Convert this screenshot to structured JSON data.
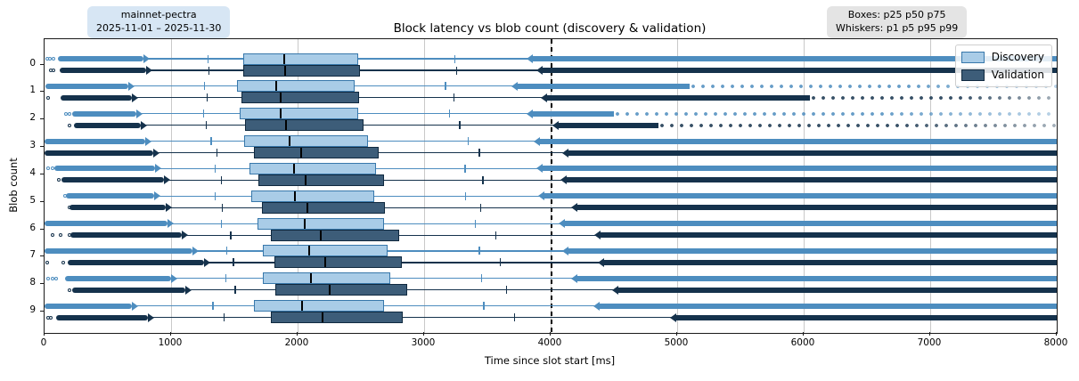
{
  "figure": {
    "title": "Block latency vs blob count (discovery & validation)",
    "left_badge": {
      "line1": "mainnet-pectra",
      "line2": "2025-11-01 – 2025-11-30"
    },
    "right_badge": {
      "line1": "Boxes: p25 p50 p75",
      "line2": "Whiskers: p1 p5 p95 p99"
    }
  },
  "chart_data": {
    "type": "boxplot-horizontal",
    "title": "Block latency vs blob count (discovery & validation)",
    "xlabel": "Time since slot start [ms]",
    "ylabel": "Blob count",
    "xlim": [
      0,
      8000
    ],
    "x_ticks": [
      0,
      1000,
      2000,
      3000,
      4000,
      5000,
      6000,
      7000,
      8000
    ],
    "grid": "vertical",
    "refline_x": 4000,
    "legend": {
      "position": "upper right",
      "items": [
        {
          "label": "Discovery"
        },
        {
          "label": "Validation"
        }
      ]
    },
    "box_stats_definition": {
      "box": "p25 p50 p75",
      "whiskers": "p1 p5 p95 p99"
    },
    "colors": {
      "discovery_fill": "#a9cce7",
      "discovery_edge": "#3878ab",
      "discovery_band": "#4d8dbf",
      "validation_fill": "#3d5d79",
      "validation_edge": "#10293f",
      "validation_band": "#15324c",
      "median": "#000000",
      "grid": "#c9c9c9",
      "refline": "#000000"
    },
    "groups": [
      {
        "blob_count": 0,
        "discovery": {
          "outlier_dots_ms": [
            18,
            45,
            68
          ],
          "flier_band_low_ms": [
            108,
            780
          ],
          "p5": 1286,
          "p25": 1570,
          "p50": 1887,
          "p75": 2478,
          "p95": 3239,
          "flier_band_high_start_ms": 3860,
          "flier_fade_from_ms": null
        },
        "validation": {
          "outlier_dots_ms": [
            50,
            72
          ],
          "flier_band_low_ms": [
            120,
            800
          ],
          "p5": 1295,
          "p25": 1570,
          "p50": 1894,
          "p75": 2492,
          "p95": 3253,
          "flier_band_high_start_ms": 3940,
          "flier_fade_from_ms": null
        }
      },
      {
        "blob_count": 1,
        "discovery": {
          "outlier_dots_ms": [],
          "flier_band_low_ms": [
            5,
            660
          ],
          "p5": 1260,
          "p25": 1521,
          "p50": 1824,
          "p75": 2450,
          "p95": 3162,
          "flier_band_high_start_ms": 3740,
          "flier_fade_from_ms": 5100
        },
        "validation": {
          "outlier_dots_ms": [
            30
          ],
          "flier_band_low_ms": [
            130,
            690
          ],
          "p5": 1280,
          "p25": 1556,
          "p50": 1859,
          "p75": 2485,
          "p95": 3232,
          "flier_band_high_start_ms": 3970,
          "flier_fade_from_ms": 6050
        }
      },
      {
        "blob_count": 2,
        "discovery": {
          "outlier_dots_ms": [
            168,
            198
          ],
          "flier_band_low_ms": [
            215,
            725
          ],
          "p5": 1253,
          "p25": 1542,
          "p50": 1859,
          "p75": 2478,
          "p95": 3197,
          "flier_band_high_start_ms": 3860,
          "flier_fade_from_ms": 4500
        },
        "validation": {
          "outlier_dots_ms": [
            195
          ],
          "flier_band_low_ms": [
            230,
            760
          ],
          "p5": 1274,
          "p25": 1584,
          "p50": 1901,
          "p75": 2521,
          "p95": 3275,
          "flier_band_high_start_ms": 4060,
          "flier_fade_from_ms": 4850
        }
      },
      {
        "blob_count": 3,
        "discovery": {
          "outlier_dots_ms": [],
          "flier_band_low_ms": [
            0,
            795
          ],
          "p5": 1310,
          "p25": 1577,
          "p50": 1929,
          "p75": 2556,
          "p95": 3345,
          "flier_band_high_start_ms": 3915,
          "flier_fade_from_ms": null
        },
        "validation": {
          "outlier_dots_ms": [],
          "flier_band_low_ms": [
            0,
            860
          ],
          "p5": 1359,
          "p25": 1655,
          "p50": 2021,
          "p75": 2641,
          "p95": 3430,
          "flier_band_high_start_ms": 4140,
          "flier_fade_from_ms": null
        }
      },
      {
        "blob_count": 4,
        "discovery": {
          "outlier_dots_ms": [
            28,
            60
          ],
          "flier_band_low_ms": [
            75,
            875
          ],
          "p5": 1345,
          "p25": 1620,
          "p50": 1965,
          "p75": 2620,
          "p95": 3317,
          "flier_band_high_start_ms": 3940,
          "flier_fade_from_ms": null
        },
        "validation": {
          "outlier_dots_ms": [
            113
          ],
          "flier_band_low_ms": [
            135,
            945
          ],
          "p5": 1394,
          "p25": 1690,
          "p50": 2056,
          "p75": 2683,
          "p95": 3458,
          "flier_band_high_start_ms": 4130,
          "flier_fade_from_ms": null
        }
      },
      {
        "blob_count": 5,
        "discovery": {
          "outlier_dots_ms": [
            160
          ],
          "flier_band_low_ms": [
            170,
            865
          ],
          "p5": 1345,
          "p25": 1632,
          "p50": 1972,
          "p75": 2606,
          "p95": 3323,
          "flier_band_high_start_ms": 3950,
          "flier_fade_from_ms": null
        },
        "validation": {
          "outlier_dots_ms": [
            195
          ],
          "flier_band_low_ms": [
            197,
            960
          ],
          "p5": 1400,
          "p25": 1719,
          "p50": 2070,
          "p75": 2690,
          "p95": 3443,
          "flier_band_high_start_ms": 4210,
          "flier_fade_from_ms": null
        }
      },
      {
        "blob_count": 6,
        "discovery": {
          "outlier_dots_ms": [],
          "flier_band_low_ms": [
            0,
            970
          ],
          "p5": 1394,
          "p25": 1683,
          "p50": 2049,
          "p75": 2683,
          "p95": 3401,
          "flier_band_high_start_ms": 4113,
          "flier_fade_from_ms": null
        },
        "validation": {
          "outlier_dots_ms": [
            63,
            130,
            197
          ],
          "flier_band_low_ms": [
            205,
            1085
          ],
          "p5": 1465,
          "p25": 1789,
          "p50": 2176,
          "p75": 2802,
          "p95": 3563,
          "flier_band_high_start_ms": 4394,
          "flier_fade_from_ms": null
        }
      },
      {
        "blob_count": 7,
        "discovery": {
          "outlier_dots_ms": [],
          "flier_band_low_ms": [
            0,
            1170
          ],
          "p5": 1436,
          "p25": 1725,
          "p50": 2084,
          "p75": 2711,
          "p95": 3430,
          "flier_band_high_start_ms": 4140,
          "flier_fade_from_ms": null
        },
        "validation": {
          "outlier_dots_ms": [
            21,
            148
          ],
          "flier_band_low_ms": [
            183,
            1260
          ],
          "p5": 1486,
          "p25": 1817,
          "p50": 2211,
          "p75": 2824,
          "p95": 3598,
          "flier_band_high_start_ms": 4422,
          "flier_fade_from_ms": null
        }
      },
      {
        "blob_count": 8,
        "discovery": {
          "outlier_dots_ms": [
            30,
            60,
            90
          ],
          "flier_band_low_ms": [
            160,
            1000
          ],
          "p5": 1429,
          "p25": 1725,
          "p50": 2099,
          "p75": 2732,
          "p95": 3450,
          "flier_band_high_start_ms": 4210,
          "flier_fade_from_ms": null
        },
        "validation": {
          "outlier_dots_ms": [
            197
          ],
          "flier_band_low_ms": [
            220,
            1112
          ],
          "p5": 1500,
          "p25": 1824,
          "p50": 2246,
          "p75": 2866,
          "p95": 3647,
          "flier_band_high_start_ms": 4535,
          "flier_fade_from_ms": null
        }
      },
      {
        "blob_count": 9,
        "discovery": {
          "outlier_dots_ms": [],
          "flier_band_low_ms": [
            0,
            690
          ],
          "p5": 1324,
          "p25": 1655,
          "p50": 2028,
          "p75": 2683,
          "p95": 3465,
          "flier_band_high_start_ms": 4387,
          "flier_fade_from_ms": null
        },
        "validation": {
          "outlier_dots_ms": [
            28,
            50
          ],
          "flier_band_low_ms": [
            90,
            817
          ],
          "p5": 1415,
          "p25": 1789,
          "p50": 2190,
          "p75": 2831,
          "p95": 3711,
          "flier_band_high_start_ms": 4990,
          "flier_fade_from_ms": null
        }
      }
    ]
  }
}
